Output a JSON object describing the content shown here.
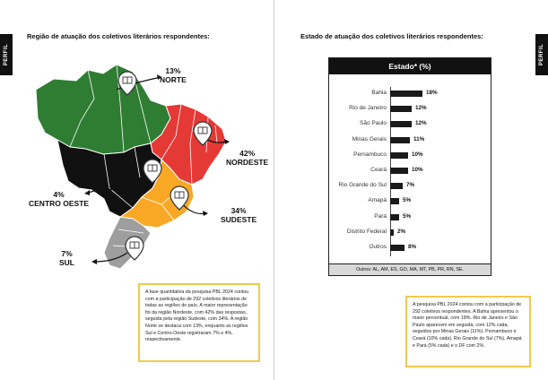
{
  "tab_label": "PERFIL",
  "left_page": {
    "title": "Região de atuação dos coletivos literários respondentes:",
    "regions": [
      {
        "id": "norte",
        "percent": "13%",
        "name": "NORTE",
        "color": "#2e7d32"
      },
      {
        "id": "nordeste",
        "percent": "42%",
        "name": "NORDESTE",
        "color": "#e53935"
      },
      {
        "id": "centro_oeste",
        "percent": "4%",
        "name": "CENTRO OESTE",
        "color": "#111111"
      },
      {
        "id": "sudeste",
        "percent": "34%",
        "name": "SUDESTE",
        "color": "#f9a825"
      },
      {
        "id": "sul",
        "percent": "7%",
        "name": "SUL",
        "color": "#9e9e9e"
      }
    ],
    "description": "A fase quantitativa da pesquisa PBL 2024 contou com a participação de 292 coletivos literários de todas as regiões do país. A maior representação foi da região Nordeste, com 42% das respostas, seguida pela região Sudeste, com 34%. A região Norte se destaca com 13%, enquanto as regiões Sul e Centro-Oeste registraram 7% e 4%, respectivamente."
  },
  "right_page": {
    "title": "Estado de atuação dos coletivos literários respondentes:",
    "description": "A pesquisa PBL 2024 contou com a participação de 292 coletivos respondentes. A Bahia apresentou o maior percentual, com 18%. Rio de Janeiro e São Paulo aparecem em seguida, com 12% cada, seguidos por Minas Gerais (11%), Pernambuco e Ceará (10% cada). Rio Grande do Sul (7%), Amapá e Pará (5% cada) e o DF com 2%."
  },
  "chart_data": {
    "type": "bar",
    "orientation": "horizontal",
    "title": "Estado* (%)",
    "categories": [
      "Bahia",
      "Rio de Janeiro",
      "São Paulo",
      "Minas Gerais",
      "Pernambuco",
      "Ceará",
      "Rio Grande do Sul",
      "Amapá",
      "Pará",
      "Distrito Federal",
      "Outros"
    ],
    "values": [
      18,
      12,
      12,
      11,
      10,
      10,
      7,
      5,
      5,
      2,
      8
    ],
    "value_labels": [
      "18%",
      "12%",
      "12%",
      "11%",
      "10%",
      "10%",
      "7%",
      "5%",
      "5%",
      "2%",
      "8%"
    ],
    "footnote": "Outros: AL, AM, ES, GO, MA, MT, PB, PR, RN, SE.",
    "xlim": [
      0,
      20
    ],
    "grid": false,
    "bar_color": "#1a1a1a"
  }
}
